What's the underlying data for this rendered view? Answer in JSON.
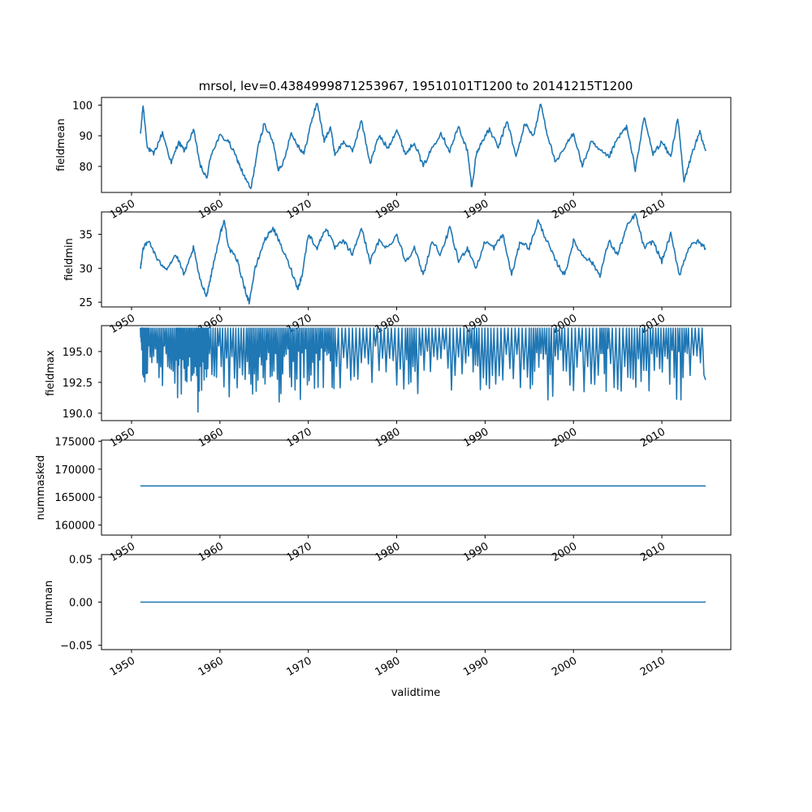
{
  "chart_data": [
    {
      "type": "line",
      "title": "mrsol, lev=0.4384999871253967, 19510101T1200 to 20141215T1200",
      "ylabel": "fieldmean",
      "xlabel": "",
      "xlim": [
        1946.6,
        2017.8
      ],
      "ylim": [
        71.5,
        102.5
      ],
      "x_ticks": [
        "1950",
        "1960",
        "1970",
        "1980",
        "1990",
        "2000",
        "2010"
      ],
      "y_ticks": [
        "80",
        "90",
        "100"
      ],
      "grid": false,
      "color": "#1f77b4",
      "x": [
        1951.0,
        1951.3,
        1951.8,
        1952.5,
        1953.5,
        1954.5,
        1955.3,
        1956.0,
        1957.0,
        1957.8,
        1958.5,
        1959.0,
        1960.0,
        1961.0,
        1962.0,
        1962.7,
        1963.5,
        1964.3,
        1965.0,
        1966.0,
        1966.6,
        1967.3,
        1968.0,
        1968.8,
        1969.5,
        1970.3,
        1971.0,
        1971.8,
        1972.5,
        1973.0,
        1974.0,
        1975.0,
        1976.0,
        1977.0,
        1978.0,
        1979.0,
        1980.0,
        1981.0,
        1982.0,
        1983.0,
        1984.0,
        1985.0,
        1986.0,
        1987.0,
        1988.0,
        1988.5,
        1989.0,
        1989.8,
        1990.5,
        1991.5,
        1992.5,
        1993.5,
        1994.5,
        1995.5,
        1996.3,
        1997.0,
        1998.0,
        1999.0,
        2000.0,
        2001.0,
        2002.0,
        2003.0,
        2004.0,
        2005.0,
        2006.0,
        2007.0,
        2008.0,
        2009.0,
        2010.0,
        2011.0,
        2011.8,
        2012.5,
        2013.5,
        2014.3,
        2014.95
      ],
      "values": [
        90,
        100,
        86,
        84,
        91,
        81,
        88,
        85,
        92,
        80,
        76,
        84,
        90,
        88,
        82,
        77,
        72.5,
        86,
        94,
        88,
        79,
        82,
        91,
        87,
        84,
        94,
        101,
        88,
        93,
        84,
        88,
        85,
        95,
        81,
        90,
        86,
        92,
        84,
        88,
        80,
        86,
        91,
        85,
        93,
        85,
        73,
        84,
        89,
        92,
        86,
        95,
        83,
        94,
        90,
        100.5,
        91,
        81,
        86,
        91,
        80,
        88,
        85,
        83,
        89,
        93,
        79,
        96,
        84,
        88,
        83,
        96,
        75,
        85,
        91,
        85
      ]
    },
    {
      "type": "line",
      "title": "",
      "ylabel": "fieldmin",
      "xlabel": "",
      "xlim": [
        1946.6,
        2017.8
      ],
      "ylim": [
        24.3,
        38.3
      ],
      "x_ticks": [
        "1950",
        "1960",
        "1970",
        "1980",
        "1990",
        "2000",
        "2010"
      ],
      "y_ticks": [
        "25",
        "30",
        "35"
      ],
      "grid": false,
      "color": "#1f77b4",
      "x": [
        1951.0,
        1951.3,
        1952.0,
        1953.0,
        1954.0,
        1955.0,
        1956.0,
        1957.0,
        1957.8,
        1958.5,
        1959.0,
        1960.0,
        1960.5,
        1961.0,
        1962.0,
        1962.8,
        1963.3,
        1964.0,
        1965.0,
        1966.0,
        1967.0,
        1968.0,
        1968.8,
        1969.3,
        1970.0,
        1971.0,
        1972.0,
        1973.0,
        1974.0,
        1975.0,
        1976.0,
        1977.0,
        1978.0,
        1979.0,
        1980.0,
        1981.0,
        1982.0,
        1983.0,
        1984.0,
        1985.0,
        1986.0,
        1987.0,
        1988.0,
        1989.0,
        1990.0,
        1991.0,
        1992.0,
        1993.0,
        1994.0,
        1995.0,
        1996.0,
        1997.0,
        1998.0,
        1999.0,
        2000.0,
        2001.0,
        2002.0,
        2003.0,
        2004.0,
        2005.0,
        2006.0,
        2007.0,
        2008.0,
        2009.0,
        2010.0,
        2011.0,
        2012.0,
        2013.0,
        2014.0,
        2014.95
      ],
      "values": [
        30,
        33,
        34,
        31,
        30,
        32,
        29,
        33,
        28,
        26,
        29,
        35,
        37,
        33,
        31,
        27,
        25,
        30,
        34,
        36,
        33,
        30,
        27,
        29,
        35,
        33,
        36,
        33,
        34,
        32,
        36,
        31,
        34,
        33,
        35,
        31,
        33,
        29,
        34,
        32,
        36,
        31,
        33,
        30,
        34,
        33,
        35,
        29,
        34,
        33,
        37,
        34,
        31,
        29,
        34,
        32,
        31,
        29,
        34,
        32,
        36,
        38,
        33,
        34,
        31,
        35,
        29,
        33,
        34,
        33
      ]
    },
    {
      "type": "line",
      "title": "",
      "ylabel": "fieldmax",
      "xlabel": "",
      "xlim": [
        1946.6,
        2017.8
      ],
      "ylim": [
        189.4,
        197.1
      ],
      "x_ticks": [
        "1950",
        "1960",
        "1970",
        "1980",
        "1990",
        "2000",
        "2010"
      ],
      "y_ticks": [
        "190.0",
        "192.5",
        "195.0"
      ],
      "grid": false,
      "color": "#1f77b4",
      "x": [
        1951.0,
        1951.3,
        1952.0,
        1953.0,
        1954.0,
        1955.0,
        1955.7,
        1956.5,
        1957.3,
        1958.0,
        1958.7,
        1960.0,
        1961.5,
        1963.0,
        1964.0,
        1965.0,
        1966.0,
        1967.0,
        1968.0,
        1969.0,
        1970.0,
        1971.0,
        1972.0,
        1973.0,
        1975.0,
        1977.0,
        1979.0,
        1981.0,
        1982.2,
        1984.0,
        1986.0,
        1988.0,
        1989.3,
        1991.0,
        1993.0,
        1995.0,
        1996.2,
        1997.5,
        1999.0,
        2001.0,
        2003.0,
        2004.0,
        2006.0,
        2007.5,
        2009.0,
        2010.5,
        2011.8,
        2013.0,
        2014.95
      ],
      "values": [
        196.0,
        191.9,
        192.2,
        191.6,
        192.5,
        191.7,
        190.0,
        192.0,
        190.3,
        189.6,
        192.2,
        192.5,
        190.6,
        191.5,
        190.8,
        191.7,
        190.2,
        191.2,
        191.9,
        190.9,
        192.4,
        191.5,
        191.6,
        190.9,
        191.9,
        192.3,
        191.9,
        191.7,
        190.6,
        191.7,
        191.8,
        192.2,
        190.9,
        191.6,
        191.6,
        191.8,
        190.4,
        191.2,
        191.6,
        190.7,
        192.1,
        191.6,
        191.5,
        192.2,
        190.4,
        191.9,
        190.5,
        191.7,
        192.7
      ],
      "upper": 196.9
    },
    {
      "type": "line",
      "title": "",
      "ylabel": "nummasked",
      "xlabel": "",
      "xlim": [
        1946.6,
        2017.8
      ],
      "ylim": [
        158200,
        175200
      ],
      "x_ticks": [
        "1950",
        "1960",
        "1970",
        "1980",
        "1990",
        "2000",
        "2010"
      ],
      "y_ticks": [
        "160000",
        "165000",
        "170000",
        "175000"
      ],
      "grid": false,
      "color": "#1f77b4",
      "x": [
        1951.0,
        2014.95
      ],
      "values": [
        167000,
        167000
      ]
    },
    {
      "type": "line",
      "title": "",
      "ylabel": "numnan",
      "xlabel": "validtime",
      "xlim": [
        1946.6,
        2017.8
      ],
      "ylim": [
        -0.055,
        0.055
      ],
      "x_ticks": [
        "1950",
        "1960",
        "1970",
        "1980",
        "1990",
        "2000",
        "2010"
      ],
      "y_ticks": [
        "−0.05",
        "0.00",
        "0.05"
      ],
      "grid": false,
      "color": "#1f77b4",
      "x": [
        1951.0,
        2014.95
      ],
      "values": [
        0,
        0
      ]
    }
  ]
}
